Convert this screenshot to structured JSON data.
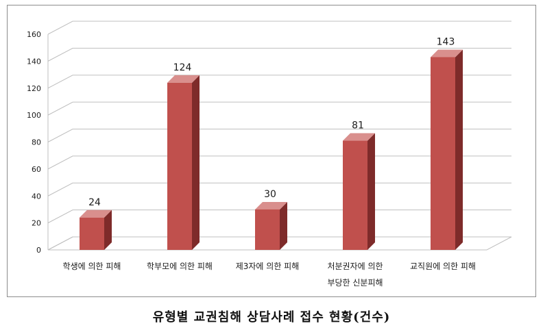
{
  "caption": "유형별 교권침해 상담사례 접수 현황(건수)",
  "chart_data": {
    "type": "bar",
    "categories": [
      [
        "학생에 의한 피해"
      ],
      [
        "학부모에 의한 피해"
      ],
      [
        "제3자에 의한 피해"
      ],
      [
        "처분권자에 의한",
        "부당한 신분피해"
      ],
      [
        "교직원에 의한 피해"
      ]
    ],
    "values": [
      24,
      124,
      30,
      81,
      143
    ],
    "ylim": [
      0,
      160
    ],
    "y_ticks": [
      0,
      20,
      40,
      60,
      80,
      100,
      120,
      140,
      160
    ],
    "grid": true,
    "colors": {
      "bar_front": "#c0504d",
      "bar_side": "#7e2b2a",
      "bar_top": "#d98f8d",
      "grid": "#bfbfbf",
      "text": "#1a1a1a"
    }
  }
}
